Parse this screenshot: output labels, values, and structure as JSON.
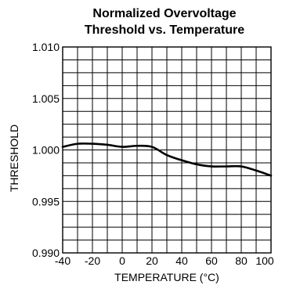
{
  "chart_data": {
    "type": "line",
    "title_lines": [
      "Normalized Overvoltage",
      "Threshold vs. Temperature"
    ],
    "xlabel": "TEMPERATURE (°C)",
    "ylabel": "THRESHOLD",
    "xlim": [
      -40,
      100
    ],
    "ylim": [
      0.99,
      1.01
    ],
    "x_ticks": [
      -40,
      -20,
      0,
      20,
      40,
      60,
      80,
      100
    ],
    "x_tick_labels": [
      "-40",
      "-20",
      "0",
      "20",
      "40",
      "60",
      "80",
      "100"
    ],
    "y_ticks": [
      0.99,
      0.995,
      1.0,
      1.005,
      1.01
    ],
    "y_tick_labels": [
      "0.990",
      "0.995",
      "1.000",
      "1.005",
      "1.010"
    ],
    "grid": true,
    "x_grid_step": 10,
    "y_grid_step": 0.00125,
    "series": [
      {
        "x": [
          -40,
          -30,
          -20,
          -10,
          0,
          10,
          20,
          30,
          40,
          50,
          60,
          70,
          80,
          90,
          100
        ],
        "y": [
          1.0003,
          1.0006,
          1.0006,
          1.0005,
          1.0003,
          1.0004,
          1.0003,
          0.9995,
          0.999,
          0.9986,
          0.9984,
          0.9984,
          0.9984,
          0.998,
          0.9975
        ]
      }
    ],
    "colors": {
      "line": "#000000",
      "grid": "#000000",
      "background": "#ffffff"
    }
  }
}
